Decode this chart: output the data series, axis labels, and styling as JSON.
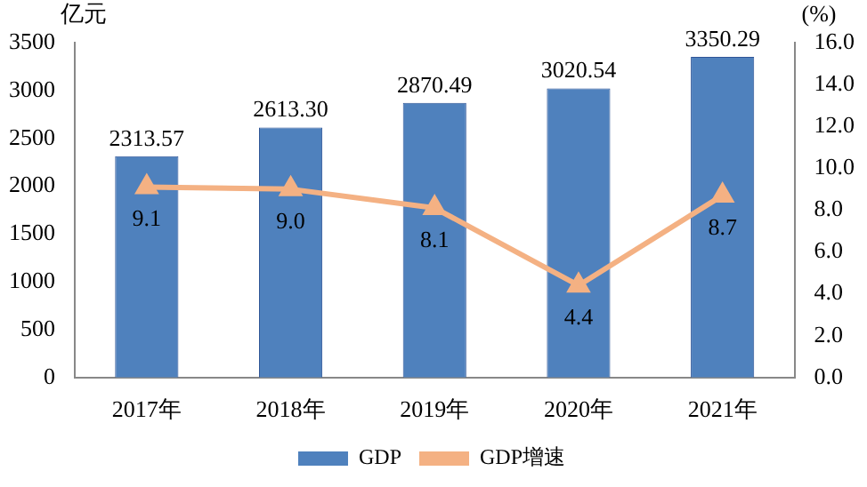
{
  "chart_data": {
    "type": "bar",
    "categories": [
      "2017年",
      "2018年",
      "2019年",
      "2020年",
      "2021年"
    ],
    "ylabel": "亿元",
    "y2label": "(%)",
    "series": [
      {
        "name": "GDP",
        "color": "#4f81bd",
        "values": [
          2313.57,
          2613.3,
          2870.49,
          3020.54,
          3350.29
        ],
        "value_labels": [
          "2313.57",
          "2613.30",
          "2870.49",
          "3020.54",
          "3350.29"
        ]
      },
      {
        "name": "GDP增速",
        "type": "line",
        "axis": "y2",
        "color": "#f4b183",
        "values": [
          9.1,
          9.0,
          8.1,
          4.4,
          8.7
        ],
        "value_labels": [
          "9.1",
          "9.0",
          "8.1",
          "4.4",
          "8.7"
        ]
      }
    ],
    "ylim": [
      0,
      3500
    ],
    "yticks": [
      0,
      500,
      1000,
      1500,
      2000,
      2500,
      3000,
      3500
    ],
    "y2lim": [
      0,
      16
    ],
    "y2ticks": [
      {
        "value": 0,
        "label": "0.0"
      },
      {
        "value": 2,
        "label": "2.0"
      },
      {
        "value": 4,
        "label": "4.0"
      },
      {
        "value": 6,
        "label": "6.0"
      },
      {
        "value": 8,
        "label": "8.0"
      },
      {
        "value": 10,
        "label": "10.0"
      },
      {
        "value": 12,
        "label": "12.0"
      },
      {
        "value": 14,
        "label": "14.0"
      },
      {
        "value": 16,
        "label": "16.0"
      }
    ],
    "grid": false,
    "legend": "bottom",
    "marker": "triangle",
    "line_style": "solid"
  }
}
